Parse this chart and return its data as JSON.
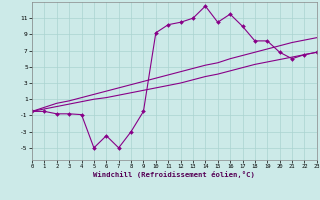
{
  "xlabel": "Windchill (Refroidissement éolien,°C)",
  "background_color": "#cceae8",
  "grid_color": "#aad4d0",
  "line_color": "#880088",
  "x_data": [
    0,
    1,
    2,
    3,
    4,
    5,
    6,
    7,
    8,
    9,
    10,
    11,
    12,
    13,
    14,
    15,
    16,
    17,
    18,
    19,
    20,
    21,
    22,
    23
  ],
  "y_main": [
    -0.5,
    -0.5,
    -0.8,
    -0.8,
    -0.9,
    -5.0,
    -3.5,
    -5.0,
    -3.0,
    -0.5,
    9.2,
    10.2,
    10.5,
    11.0,
    12.5,
    10.5,
    11.5,
    10.0,
    8.2,
    8.2,
    6.8,
    6.0,
    6.5,
    6.8
  ],
  "y_upper": [
    -0.5,
    0.0,
    0.5,
    0.8,
    1.2,
    1.6,
    2.0,
    2.4,
    2.8,
    3.2,
    3.6,
    4.0,
    4.4,
    4.8,
    5.2,
    5.5,
    6.0,
    6.4,
    6.8,
    7.2,
    7.6,
    8.0,
    8.3,
    8.6
  ],
  "y_lower": [
    -0.5,
    -0.2,
    0.1,
    0.4,
    0.7,
    1.0,
    1.2,
    1.5,
    1.8,
    2.1,
    2.4,
    2.7,
    3.0,
    3.4,
    3.8,
    4.1,
    4.5,
    4.9,
    5.3,
    5.6,
    5.9,
    6.2,
    6.5,
    6.8
  ],
  "ylim": [
    -6.5,
    13.0
  ],
  "yticks": [
    -5,
    -3,
    -1,
    1,
    3,
    5,
    7,
    9,
    11
  ],
  "xlim": [
    0,
    23
  ],
  "xticks": [
    0,
    1,
    2,
    3,
    4,
    5,
    6,
    7,
    8,
    9,
    10,
    11,
    12,
    13,
    14,
    15,
    16,
    17,
    18,
    19,
    20,
    21,
    22,
    23
  ]
}
